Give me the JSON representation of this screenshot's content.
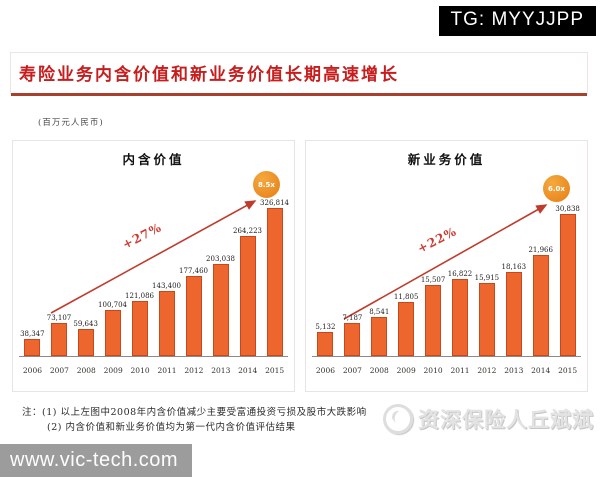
{
  "overlay": {
    "tg_badge": "TG: MYYJJPP",
    "watermark_text": "资深保险人丘斌斌",
    "website": "www.vic-tech.com"
  },
  "header": {
    "title": "寿险业务内含价值和新业务价值长期高速增长",
    "unit_note": "(百万元人民币)"
  },
  "notes": {
    "prefix": "注：",
    "line1": "(1) 以上左图中2008年内含价值减少主要受富通投资亏损及股市大跌影响",
    "line2": "(2) 内含价值和新业务价值均为第一代内含价值评估结果"
  },
  "colors": {
    "bar_fill": "#ec662e",
    "bar_border": "#c7481c",
    "title_red": "#c71d1d",
    "underline_red": "#a8402c",
    "arrow_red": "#c03b2c",
    "badge_orange": "#e77d15",
    "tg_bg": "#000000",
    "site_bar_bg": "#9c9c9c"
  },
  "chart_data": [
    {
      "type": "bar",
      "title": "内含价值",
      "categories": [
        "2006",
        "2007",
        "2008",
        "2009",
        "2010",
        "2011",
        "2012",
        "2013",
        "2014",
        "2015"
      ],
      "values": [
        38347,
        73107,
        59643,
        100704,
        121086,
        143400,
        177460,
        203038,
        264223,
        326814
      ],
      "value_labels": [
        "38,347",
        "73,107",
        "59,643",
        "100,704",
        "121,086",
        "143,400",
        "177,460",
        "203,038",
        "264,223",
        "326,814"
      ],
      "growth_label": "+27%",
      "multiple_badge": "8.5x",
      "unit": "百万元人民币",
      "xlabel": "",
      "ylabel": "",
      "ylim": [
        0,
        350000
      ],
      "grid": false,
      "legend": false
    },
    {
      "type": "bar",
      "title": "新业务价值",
      "categories": [
        "2006",
        "2007",
        "2008",
        "2009",
        "2010",
        "2011",
        "2012",
        "2013",
        "2014",
        "2015"
      ],
      "values": [
        5132,
        7187,
        8541,
        11805,
        15507,
        16822,
        15915,
        18163,
        21966,
        30838
      ],
      "value_labels": [
        "5,132",
        "7,187",
        "8,541",
        "11,805",
        "15,507",
        "16,822",
        "15,915",
        "18,163",
        "21,966",
        "30,838"
      ],
      "growth_label": "+22%",
      "multiple_badge": "6.0x",
      "unit": "百万元人民币",
      "xlabel": "",
      "ylabel": "",
      "ylim": [
        0,
        35000
      ],
      "grid": false,
      "legend": false
    }
  ]
}
